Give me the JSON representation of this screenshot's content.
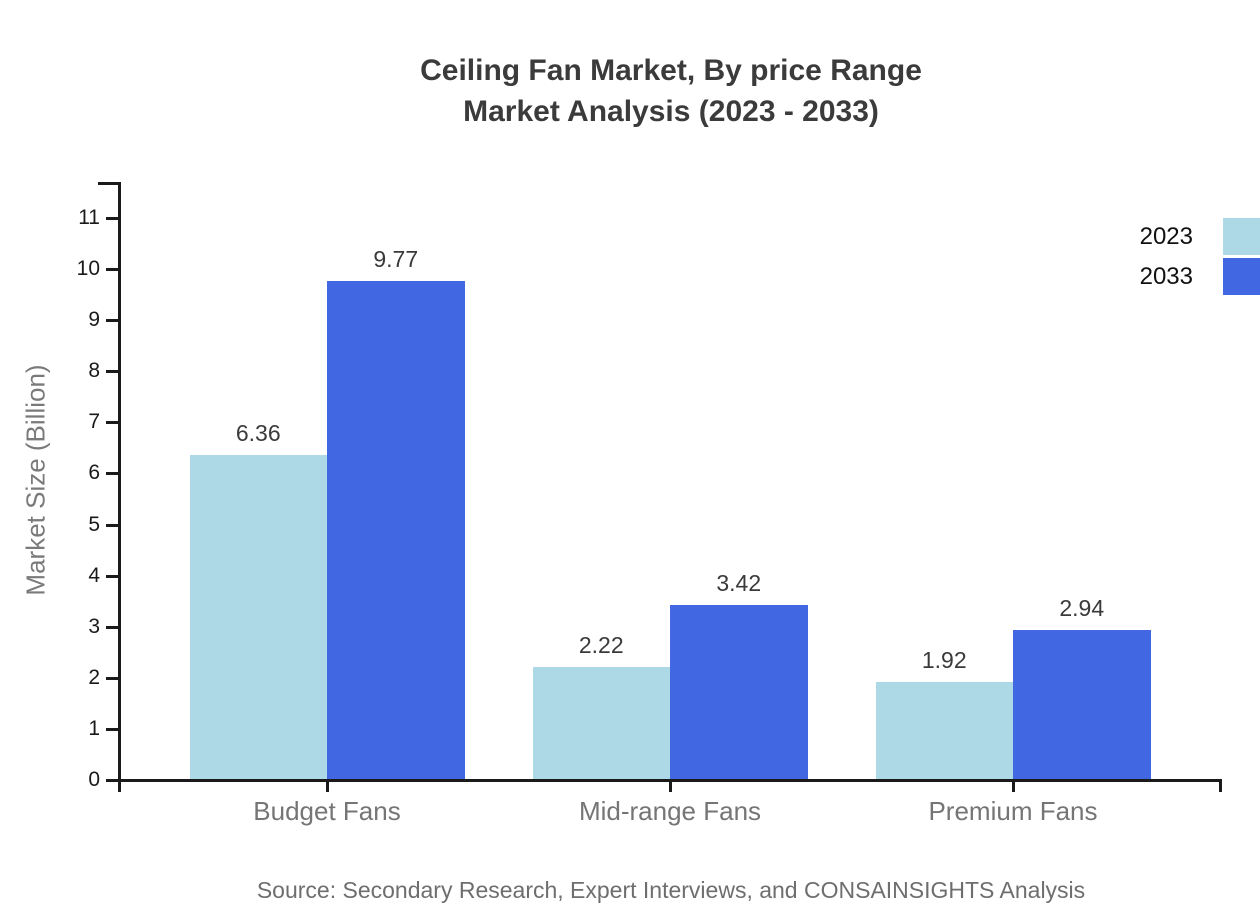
{
  "title": {
    "line1": "Ceiling Fan Market, By price Range",
    "line2": "Market Analysis (2023 - 2033)"
  },
  "source": "Source: Secondary Research, Expert Interviews, and CONSAINSIGHTS Analysis",
  "chart_data": {
    "type": "bar",
    "title": "Ceiling Fan Market, By price Range Market Analysis (2023 - 2033)",
    "categories": [
      "Budget Fans",
      "Mid-range Fans",
      "Premium Fans"
    ],
    "series": [
      {
        "name": "2023",
        "color": "#ADD8E6",
        "values": [
          6.36,
          2.22,
          1.92
        ]
      },
      {
        "name": "2033",
        "color": "#4267E2",
        "values": [
          9.77,
          3.42,
          2.94
        ]
      }
    ],
    "value_labels": [
      "6.36",
      "9.77",
      "2.22",
      "3.42",
      "1.92",
      "2.94"
    ],
    "xlabel": "",
    "ylabel": "Market Size (Billion)",
    "ylim": [
      0,
      11
    ],
    "yticks": [
      0,
      1,
      2,
      3,
      4,
      5,
      6,
      7,
      8,
      9,
      10,
      11
    ],
    "grid": false,
    "legend_position": "top-right",
    "axis_color": "#1a1a1a"
  }
}
